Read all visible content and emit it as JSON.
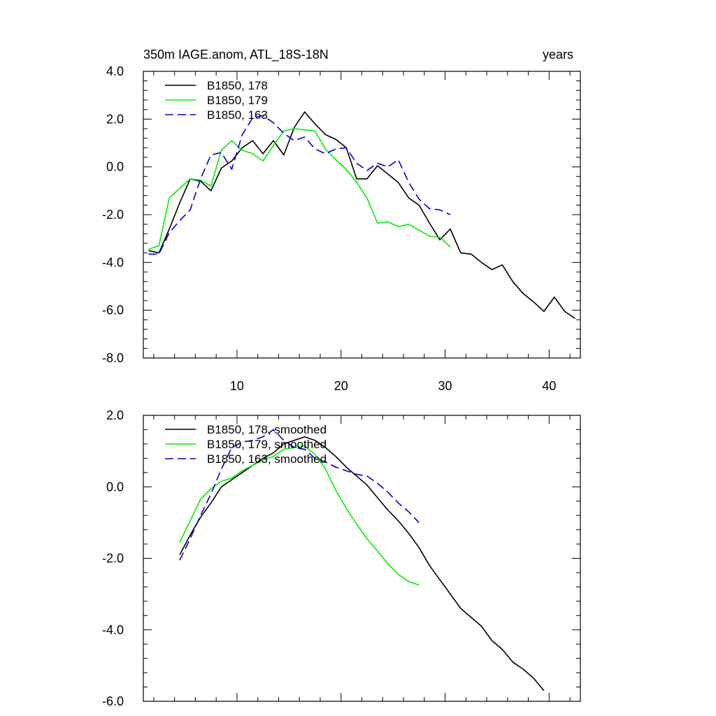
{
  "chart_data": [
    {
      "type": "line",
      "title": "350m IAGE.anom, ATL_18S-18N",
      "right_title": "years",
      "xlim": [
        1,
        43
      ],
      "ylim": [
        -8,
        4
      ],
      "y_ticks": [
        -8,
        -6,
        -4,
        -2,
        0,
        2,
        4
      ],
      "y_tick_labels": [
        "-8.0",
        "-6.0",
        "-4.0",
        "-2.0",
        "0.0",
        "2.0",
        "4.0"
      ],
      "x_ticks": [
        10,
        20,
        30,
        40
      ],
      "x_tick_labels": [
        "10",
        "20",
        "30",
        "40"
      ],
      "legend_position": "top-left",
      "series": [
        {
          "name": "B1850, 178",
          "color": "#000000",
          "dash": "solid",
          "x": [
            1.5,
            2.5,
            3.5,
            4.5,
            5.5,
            6.5,
            7.5,
            8.5,
            9.5,
            10.5,
            11.5,
            12.5,
            13.5,
            14.5,
            15.5,
            16.5,
            17.5,
            18.5,
            19.5,
            20.5,
            21.5,
            22.5,
            23.5,
            24.5,
            25.5,
            26.5,
            27.5,
            28.5,
            29.5,
            30.5,
            31.5,
            32.5,
            33.5,
            34.5,
            35.5,
            36.5,
            37.5,
            38.5,
            39.5,
            40.5,
            41.5,
            42.5
          ],
          "values": [
            -3.5,
            -3.6,
            -2.6,
            -1.5,
            -0.5,
            -0.6,
            -1.0,
            -0.05,
            0.25,
            0.8,
            1.1,
            0.55,
            1.1,
            0.5,
            1.65,
            2.3,
            1.8,
            1.35,
            1.15,
            0.8,
            -0.5,
            -0.5,
            0.05,
            -0.3,
            -0.65,
            -1.3,
            -1.6,
            -2.35,
            -3.05,
            -2.6,
            -3.6,
            -3.65,
            -4.0,
            -4.3,
            -4.1,
            -4.8,
            -5.3,
            -5.65,
            -6.05,
            -5.45,
            -6.05,
            -6.35
          ]
        },
        {
          "name": "B1850, 179",
          "color": "#00ee00",
          "dash": "solid",
          "x": [
            1.5,
            2.5,
            3.5,
            4.5,
            5.5,
            6.5,
            7.5,
            8.5,
            9.5,
            10.5,
            11.5,
            12.5,
            13.5,
            14.5,
            15.5,
            16.5,
            17.5,
            18.5,
            19.5,
            20.5,
            21.5,
            22.5,
            23.5,
            24.5,
            25.5,
            26.5,
            27.5,
            28.5,
            29.5,
            30.5
          ],
          "values": [
            -3.45,
            -3.3,
            -1.3,
            -0.9,
            -0.5,
            -0.55,
            -0.8,
            0.7,
            1.1,
            0.7,
            0.55,
            0.25,
            0.9,
            1.5,
            1.6,
            1.55,
            1.5,
            0.75,
            0.3,
            -0.1,
            -0.65,
            -1.3,
            -2.35,
            -2.3,
            -2.5,
            -2.4,
            -2.65,
            -2.9,
            -2.95,
            -3.35
          ]
        },
        {
          "name": "B1850, 163",
          "color": "#0000cc",
          "dash": "dashed",
          "x": [
            1.5,
            2.5,
            3.5,
            4.5,
            5.5,
            6.5,
            7.5,
            8.5,
            9.5,
            10.5,
            11.5,
            12.5,
            13.5,
            14.5,
            15.5,
            16.5,
            17.5,
            18.5,
            19.5,
            20.5,
            21.5,
            22.5,
            23.5,
            24.5,
            25.5,
            26.5,
            27.5,
            28.5,
            29.5,
            30.5
          ],
          "values": [
            -3.65,
            -3.65,
            -2.75,
            -2.25,
            -1.8,
            -0.5,
            0.5,
            0.6,
            -0.1,
            1.35,
            2.05,
            2.15,
            1.85,
            1.4,
            1.1,
            1.25,
            0.75,
            0.55,
            0.75,
            0.8,
            0.15,
            -0.15,
            0.15,
            0.0,
            0.3,
            -0.65,
            -1.35,
            -1.75,
            -1.8,
            -2.0
          ]
        }
      ]
    },
    {
      "type": "line",
      "xlim": [
        1,
        43
      ],
      "ylim": [
        -6,
        2
      ],
      "y_ticks": [
        -6,
        -4,
        -2,
        0,
        2
      ],
      "y_tick_labels": [
        "-6.0",
        "-4.0",
        "-2.0",
        "0.0",
        "2.0"
      ],
      "x_ticks": [
        10,
        20,
        30,
        40
      ],
      "legend_position": "top-left",
      "series": [
        {
          "name": "B1850, 178, smoothed",
          "color": "#000000",
          "dash": "solid",
          "x": [
            4.5,
            5.5,
            6.5,
            7.5,
            8.5,
            9.5,
            10.5,
            11.5,
            12.5,
            13.5,
            14.5,
            15.5,
            16.5,
            17.5,
            18.5,
            19.5,
            20.5,
            21.5,
            22.5,
            23.5,
            24.5,
            25.5,
            26.5,
            27.5,
            28.5,
            29.5,
            30.5,
            31.5,
            32.5,
            33.5,
            34.5,
            35.5,
            36.5,
            37.5,
            38.5,
            39.5
          ],
          "values": [
            -1.9,
            -1.35,
            -0.85,
            -0.45,
            0.0,
            0.2,
            0.4,
            0.6,
            0.8,
            0.95,
            1.2,
            1.3,
            1.4,
            1.3,
            1.1,
            0.85,
            0.55,
            0.3,
            0.05,
            -0.3,
            -0.65,
            -0.95,
            -1.3,
            -1.7,
            -2.2,
            -2.6,
            -3.0,
            -3.4,
            -3.65,
            -3.9,
            -4.3,
            -4.55,
            -4.9,
            -5.1,
            -5.35,
            -5.7
          ]
        },
        {
          "name": "B1850, 179, smoothed",
          "color": "#00ee00",
          "dash": "solid",
          "x": [
            4.5,
            5.5,
            6.5,
            7.5,
            8.5,
            9.5,
            10.5,
            11.5,
            12.5,
            13.5,
            14.5,
            15.5,
            16.5,
            17.5,
            18.5,
            19.5,
            20.5,
            21.5,
            22.5,
            23.5,
            24.5,
            25.5,
            26.5,
            27.5
          ],
          "values": [
            -1.55,
            -0.95,
            -0.35,
            -0.05,
            0.15,
            0.25,
            0.45,
            0.6,
            0.75,
            0.85,
            1.05,
            1.1,
            1.15,
            0.9,
            0.5,
            -0.1,
            -0.6,
            -1.05,
            -1.45,
            -1.8,
            -2.15,
            -2.45,
            -2.65,
            -2.75
          ]
        },
        {
          "name": "B1850, 163, smoothed",
          "color": "#0000cc",
          "dash": "dashed",
          "x": [
            4.5,
            5.5,
            6.5,
            7.5,
            8.5,
            9.5,
            10.5,
            11.5,
            12.5,
            13.5,
            14.5,
            15.5,
            16.5,
            17.5,
            18.5,
            19.5,
            20.5,
            21.5,
            22.5,
            23.5,
            24.5,
            25.5,
            26.5,
            27.5
          ],
          "values": [
            -2.05,
            -1.45,
            -0.8,
            -0.2,
            0.5,
            1.1,
            1.25,
            1.3,
            1.4,
            1.6,
            1.3,
            1.1,
            1.05,
            0.8,
            0.7,
            0.55,
            0.45,
            0.35,
            0.3,
            0.1,
            -0.15,
            -0.45,
            -0.7,
            -1.0
          ]
        }
      ]
    }
  ]
}
